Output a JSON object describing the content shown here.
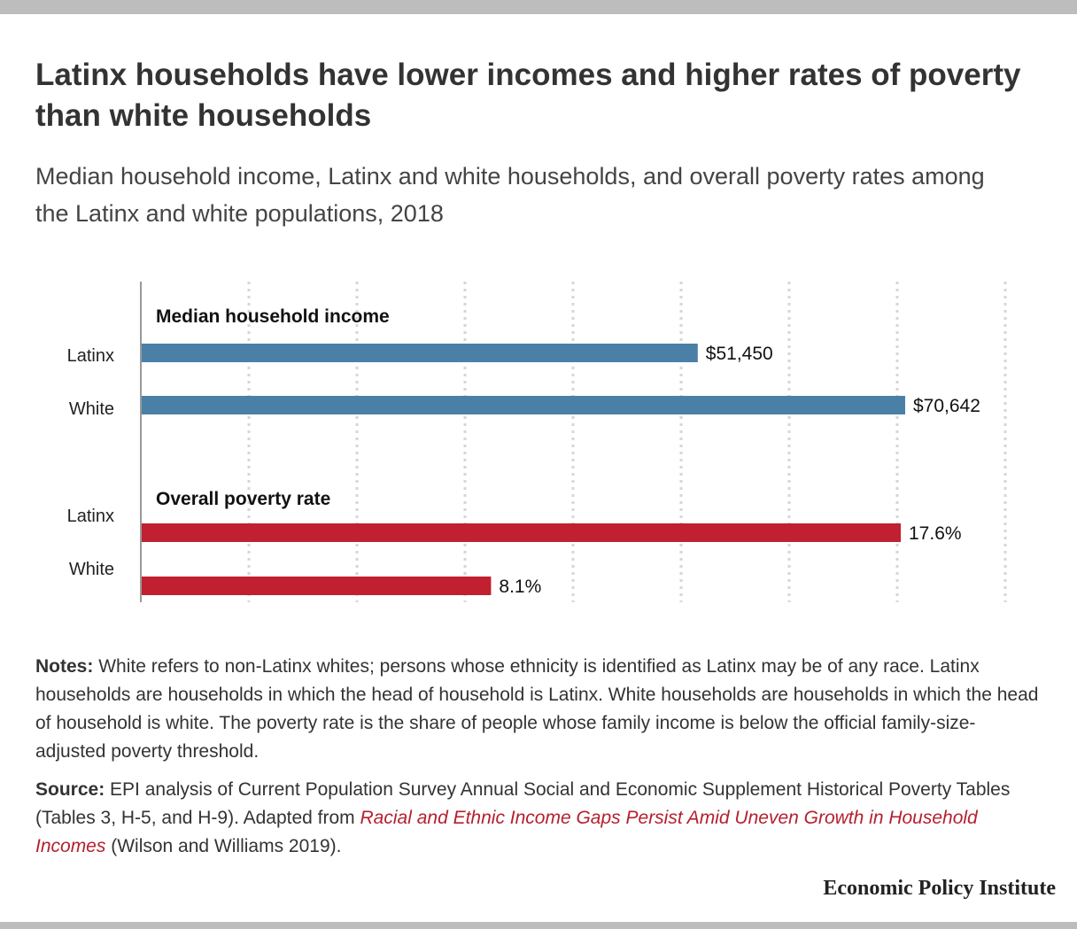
{
  "header": {
    "title": "Latinx households have lower incomes and higher rates of poverty than white households",
    "subtitle": "Median household income, Latinx and white households, and overall poverty rates among the Latinx and white populations, 2018"
  },
  "chart_data": [
    {
      "type": "bar",
      "orientation": "horizontal",
      "title": "Median household income",
      "categories": [
        "Latinx",
        "White"
      ],
      "values": [
        51450,
        70642
      ],
      "data_labels": [
        "$51,450",
        "$70,642"
      ],
      "color": "#4a80a6"
    },
    {
      "type": "bar",
      "orientation": "horizontal",
      "title": "Overall poverty rate",
      "categories": [
        "Latinx",
        "White"
      ],
      "values": [
        17.6,
        8.1
      ],
      "data_labels": [
        "17.6%",
        "8.1%"
      ],
      "color": "#c0202f"
    }
  ],
  "notes": {
    "label": "Notes:",
    "text": "White refers to non-Latinx whites; persons whose ethnicity is identified as Latinx may be of any race. Latinx households are households in which the head of household is Latinx. White households are households in which the head of household is white. The poverty rate is the share of people whose family income is below the official family-size-adjusted poverty threshold."
  },
  "source": {
    "label": "Source:",
    "text_before": "EPI analysis of Current Population Survey Annual Social and Economic Supplement Historical Poverty Tables (Tables 3, H-5, and H-9). Adapted from",
    "link_text": "Racial and Ethnic Income Gaps Persist Amid Uneven Growth in Household Incomes",
    "text_after": "(Wilson and Williams 2019)."
  },
  "branding": {
    "name": "Economic Policy Institute"
  },
  "colors": {
    "income_bar": "#4a80a6",
    "poverty_bar": "#c0202f",
    "link": "#b41f2e",
    "rule": "#bdbdbd"
  }
}
